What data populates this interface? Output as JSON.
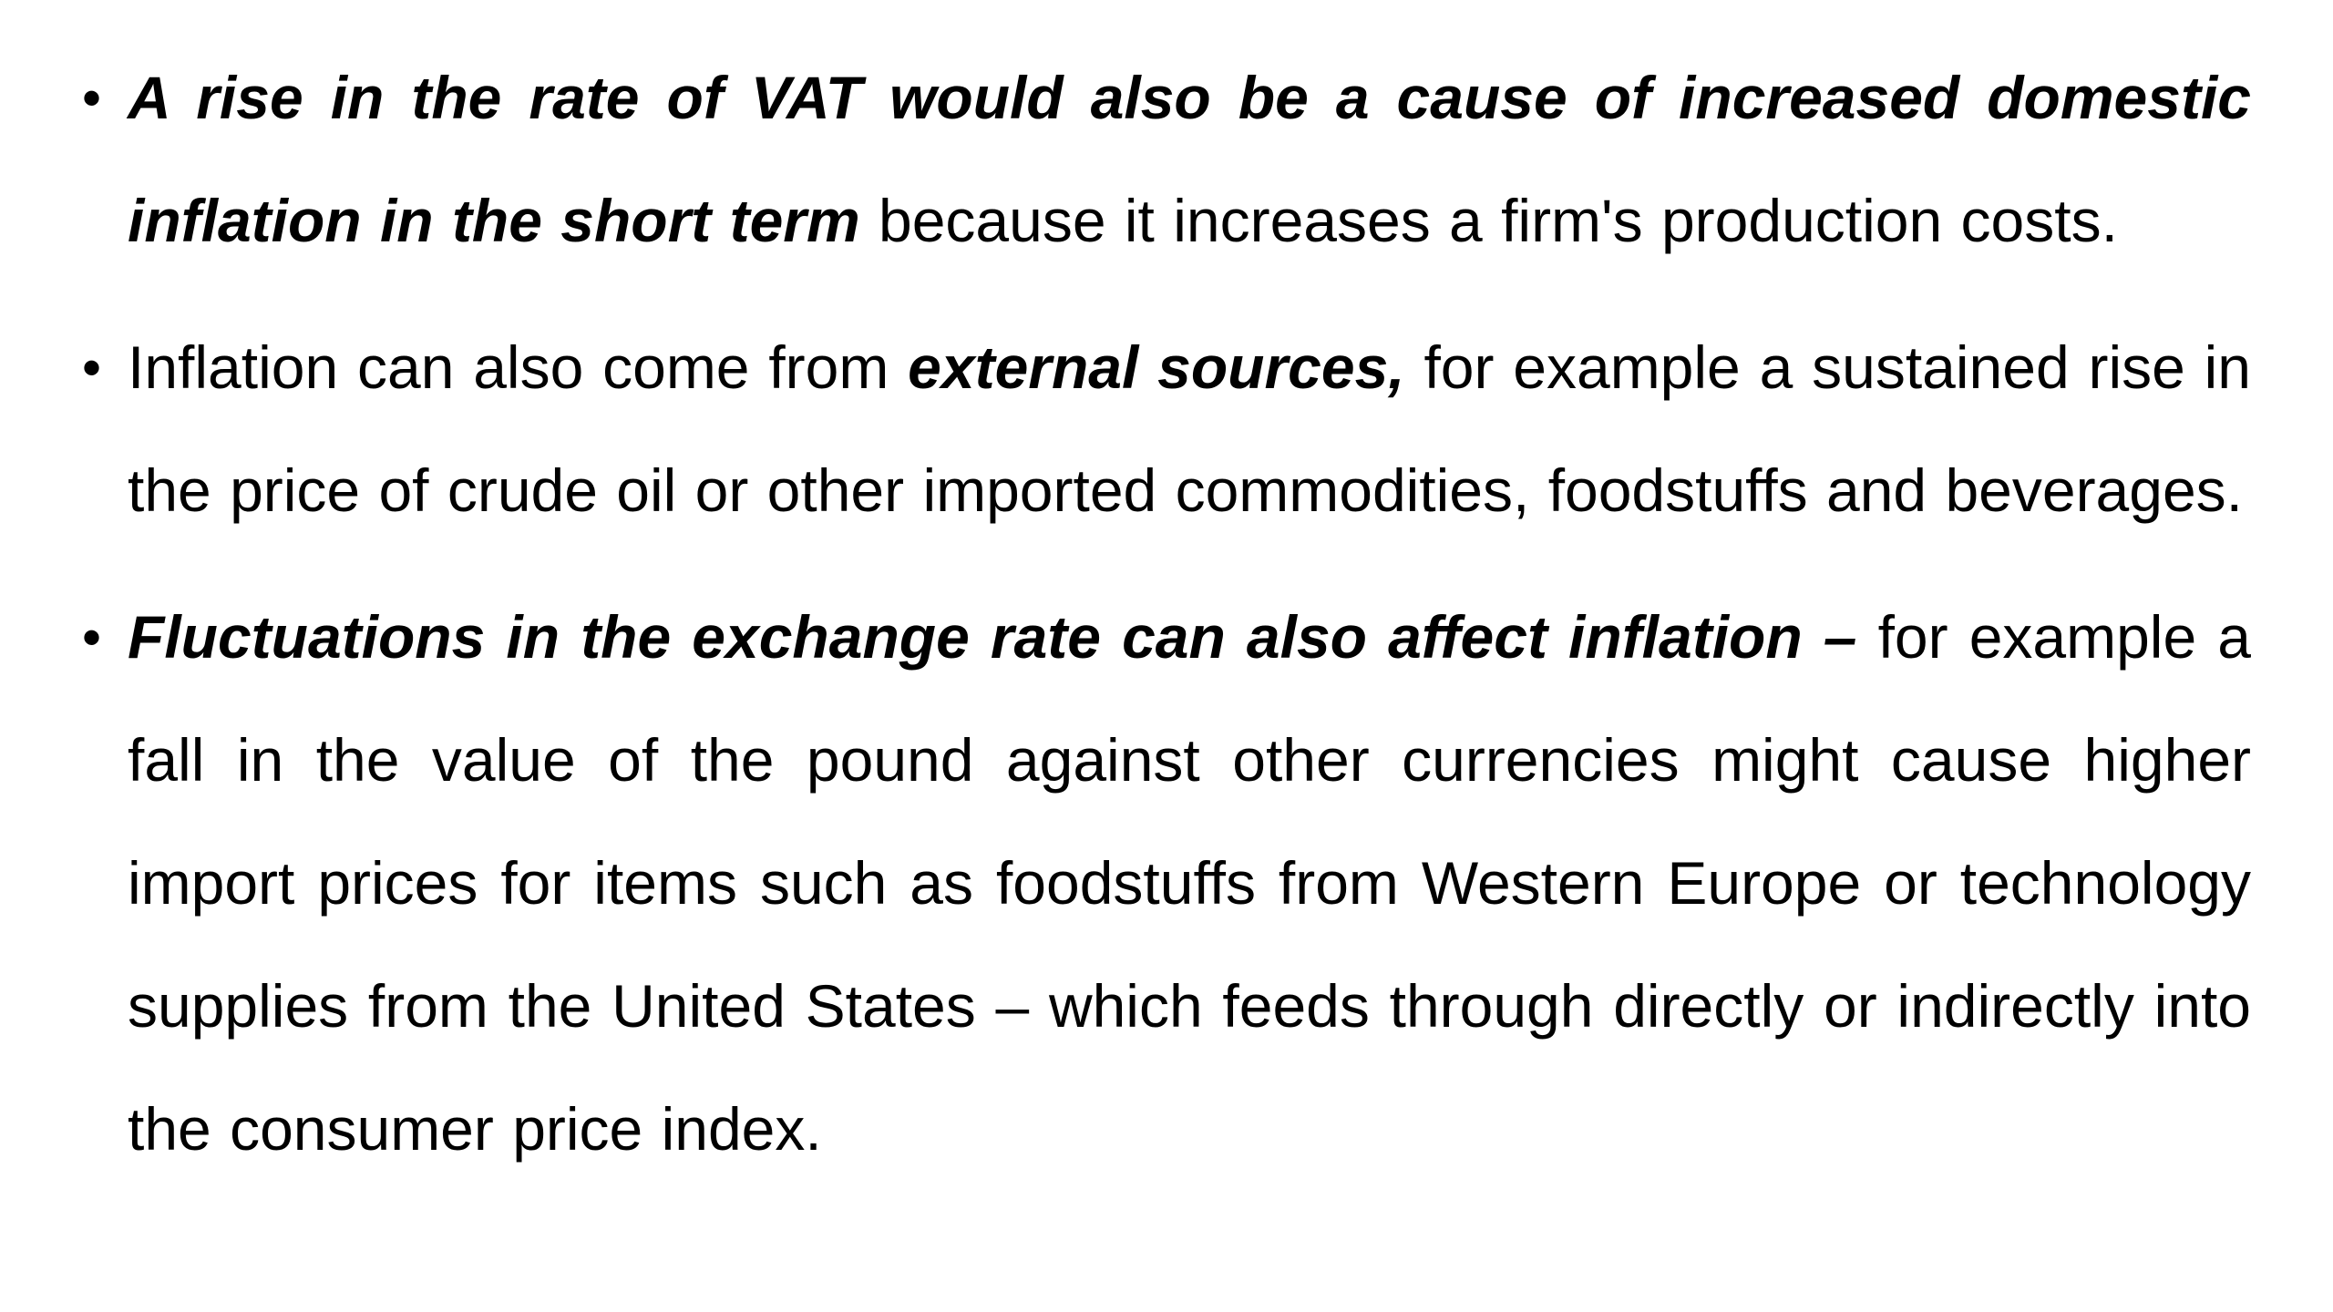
{
  "bullets": [
    {
      "marker": "•",
      "emphasis": "A rise in the rate of VAT would also be a cause of increased domestic inflation in the short term",
      "text": " because it increases a firm's production costs."
    },
    {
      "marker": "•",
      "text_before": "Inflation can also come from ",
      "emphasis": "external sources,",
      "text_after": " for example a sustained rise in the price of crude oil or other imported commodities, foodstuffs and beverages."
    },
    {
      "marker": "•",
      "emphasis": "Fluctuations in the exchange rate can also affect inflation –",
      "text": " for example a fall in the value of the pound against other currencies might cause higher import prices for items such as foodstuffs from Western Europe or technology supplies from the United States – which feeds through directly or indirectly into the consumer price index."
    }
  ]
}
